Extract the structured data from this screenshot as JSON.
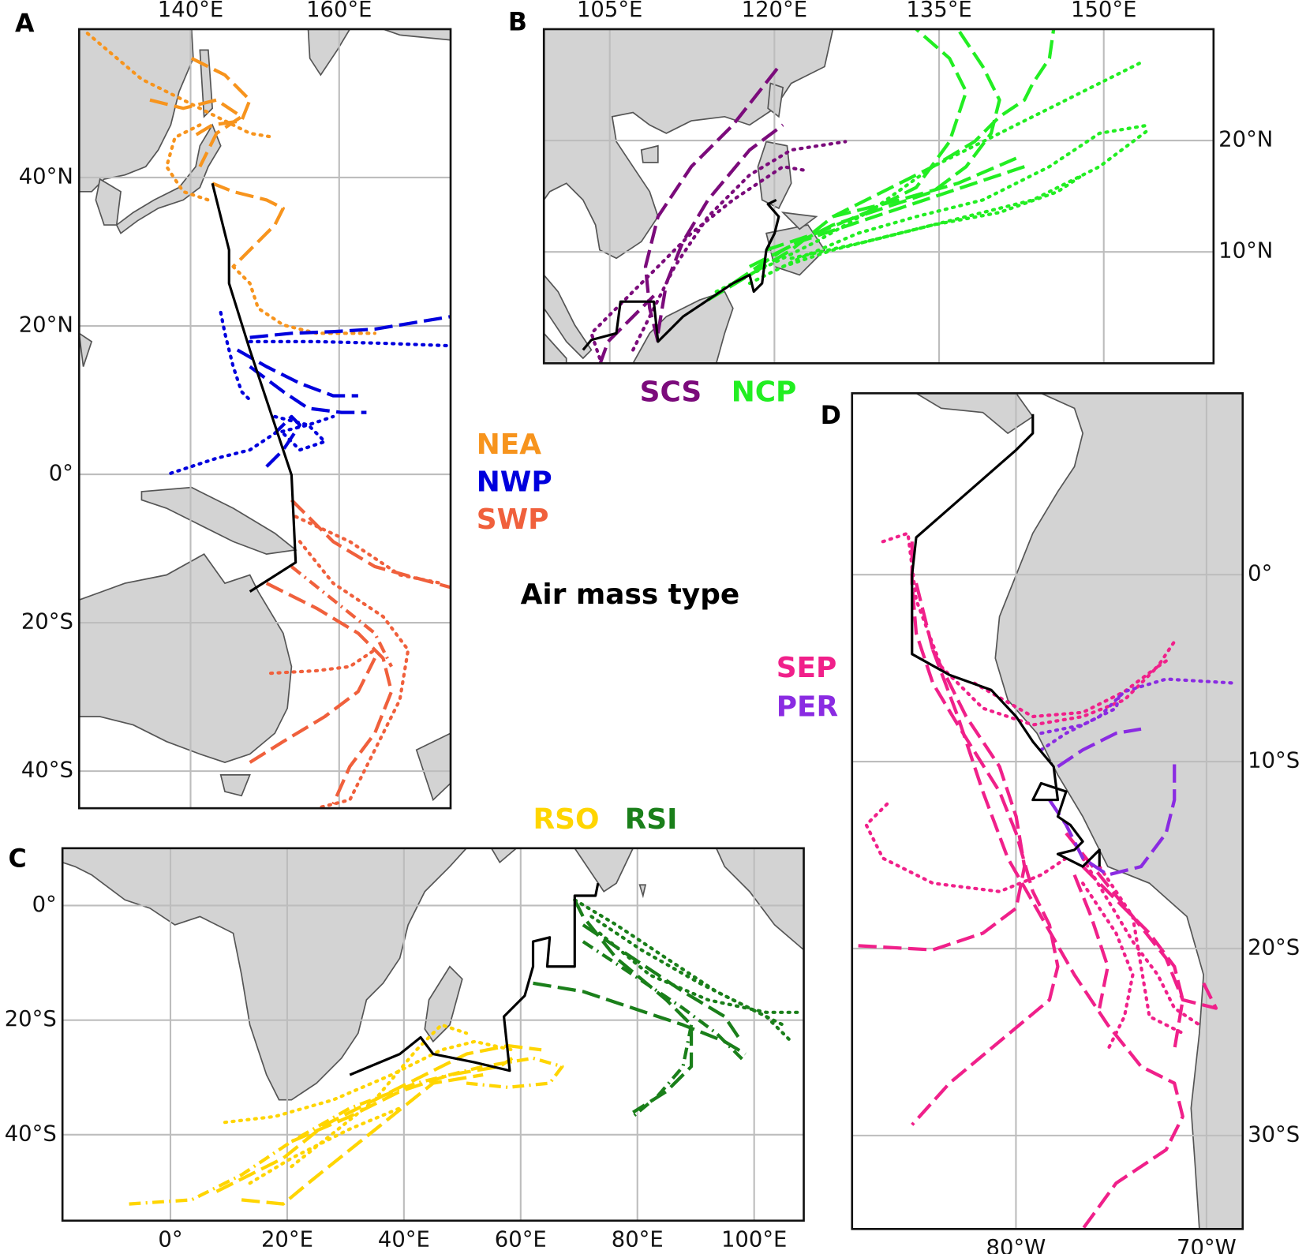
{
  "title": "Air mass type",
  "panels": [
    {
      "label": "A",
      "xlim": [
        125,
        175
      ],
      "ylim": [
        -45,
        60
      ],
      "xticks": [
        {
          "value": 140,
          "label": "140°E"
        },
        {
          "value": 160,
          "label": "160°E"
        }
      ],
      "yticks": [
        {
          "value": 40,
          "label": "40°N"
        },
        {
          "value": 20,
          "label": "20°N"
        },
        {
          "value": 0,
          "label": "0°"
        },
        {
          "value": -20,
          "label": "20°S"
        },
        {
          "value": -40,
          "label": "40°S"
        }
      ],
      "legend": [
        {
          "name": "NEA",
          "color": "#f7941d"
        },
        {
          "name": "NWP",
          "color": "#0000dd"
        },
        {
          "name": "SWP",
          "color": "#f0603c"
        }
      ]
    },
    {
      "label": "B",
      "xlim": [
        99,
        160
      ],
      "ylim": [
        0,
        30
      ],
      "xticks": [
        {
          "value": 105,
          "label": "105°E"
        },
        {
          "value": 120,
          "label": "120°E"
        },
        {
          "value": 135,
          "label": "135°E"
        },
        {
          "value": 150,
          "label": "150°E"
        }
      ],
      "yticks": [
        {
          "value": 20,
          "label": "20°N"
        },
        {
          "value": 10,
          "label": "10°N"
        }
      ],
      "legend": [
        {
          "name": "SCS",
          "color": "#7b0b7b"
        },
        {
          "name": "NCP",
          "color": "#22ee22"
        }
      ]
    },
    {
      "label": "C",
      "xlim": [
        -18.5,
        108.5
      ],
      "ylim": [
        -55,
        10
      ],
      "xticks": [
        {
          "value": 0,
          "label": "0°"
        },
        {
          "value": 20,
          "label": "20°E"
        },
        {
          "value": 40,
          "label": "40°E"
        },
        {
          "value": 60,
          "label": "60°E"
        },
        {
          "value": 80,
          "label": "80°E"
        },
        {
          "value": 100,
          "label": "100°E"
        }
      ],
      "yticks": [
        {
          "value": 0,
          "label": "0°"
        },
        {
          "value": -20,
          "label": "20°S"
        },
        {
          "value": -40,
          "label": "40°S"
        }
      ],
      "legend": [
        {
          "name": "RSO",
          "color": "#ffd500"
        },
        {
          "name": "RSI",
          "color": "#1a7f1a"
        }
      ]
    },
    {
      "label": "D",
      "xlim": [
        -88.6,
        -68.1
      ],
      "ylim": [
        -35,
        9.7
      ],
      "xticks": [
        {
          "value": -80,
          "label": "80°W"
        },
        {
          "value": -70,
          "label": "70°W"
        }
      ],
      "yticks": [
        {
          "value": 0,
          "label": "0°"
        },
        {
          "value": -10,
          "label": "10°S"
        },
        {
          "value": -20,
          "label": "20°S"
        },
        {
          "value": -30,
          "label": "30°S"
        }
      ],
      "legend": [
        {
          "name": "SEP",
          "color": "#f0208a"
        },
        {
          "name": "PER",
          "color": "#8a2be2"
        }
      ]
    }
  ]
}
